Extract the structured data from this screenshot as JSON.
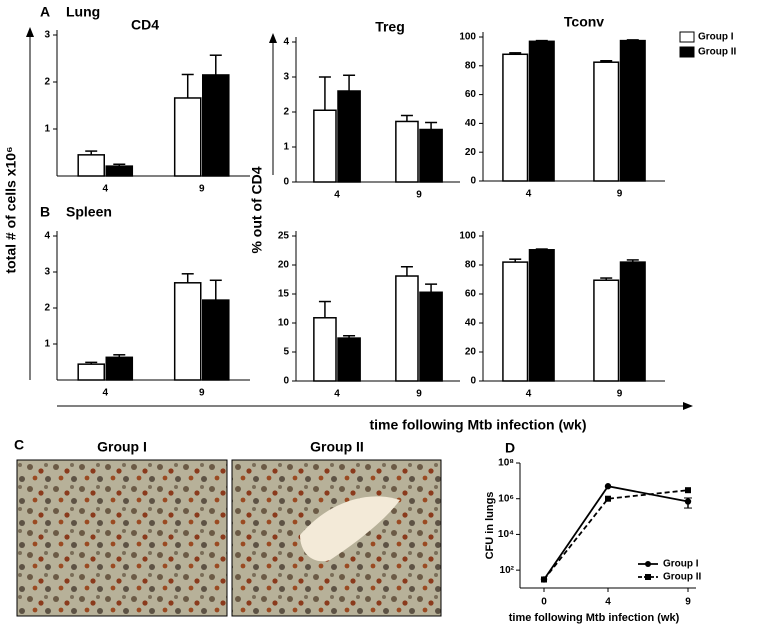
{
  "figure": {
    "panel_a": "A",
    "lung": "Lung",
    "panel_b": "B",
    "spleen": "Spleen",
    "y_label_counts": "total # of cells x10⁶",
    "y_label_percent": "% out of CD4",
    "x_label": "time following Mtb infection (wk)",
    "panel_c": "C",
    "image_group_1": "Group I",
    "image_group_2": "Group II",
    "panel_d": "D"
  },
  "chart_data": [
    {
      "type": "bar",
      "title": "CD4",
      "categories": [
        "4",
        "9"
      ],
      "ylim": [
        0,
        3
      ],
      "yticks": [
        1,
        2,
        3
      ],
      "series": [
        {
          "color": "#ffffff",
          "values": [
            0.45,
            1.66
          ],
          "errors": [
            0.08,
            0.5
          ]
        },
        {
          "color": "#000000",
          "values": [
            0.21,
            2.15
          ],
          "errors": [
            0.04,
            0.42
          ]
        }
      ]
    },
    {
      "type": "bar",
      "title": "Treg",
      "categories": [
        "4",
        "9"
      ],
      "ylim": [
        0,
        4
      ],
      "yticks": [
        0,
        1,
        2,
        3,
        4
      ],
      "series": [
        {
          "color": "#ffffff",
          "values": [
            2.05,
            1.73
          ],
          "errors": [
            0.95,
            0.17
          ]
        },
        {
          "color": "#000000",
          "values": [
            2.6,
            1.5
          ],
          "errors": [
            0.45,
            0.2
          ]
        }
      ]
    },
    {
      "type": "bar",
      "title": "Tconv",
      "categories": [
        "4",
        "9"
      ],
      "ylim": [
        0,
        100
      ],
      "yticks": [
        0,
        20,
        40,
        60,
        80,
        100
      ],
      "legend": "outside-right",
      "series": [
        {
          "name": "Group I",
          "color": "#ffffff",
          "values": [
            88,
            82.5
          ],
          "errors": [
            1,
            1
          ]
        },
        {
          "name": "Group II",
          "color": "#000000",
          "values": [
            97,
            97.5
          ],
          "errors": [
            0.5,
            0.5
          ]
        }
      ]
    },
    {
      "type": "bar",
      "categories": [
        "4",
        "9"
      ],
      "ylim": [
        0,
        4
      ],
      "yticks": [
        1,
        2,
        3,
        4
      ],
      "series": [
        {
          "color": "#ffffff",
          "values": [
            0.44,
            2.7
          ],
          "errors": [
            0.05,
            0.25
          ]
        },
        {
          "color": "#000000",
          "values": [
            0.63,
            2.22
          ],
          "errors": [
            0.07,
            0.55
          ]
        }
      ]
    },
    {
      "type": "bar",
      "categories": [
        "4",
        "9"
      ],
      "ylim": [
        0,
        25
      ],
      "yticks": [
        0,
        5,
        10,
        15,
        20,
        25
      ],
      "series": [
        {
          "color": "#ffffff",
          "values": [
            10.9,
            18.1
          ],
          "errors": [
            2.8,
            1.6
          ]
        },
        {
          "color": "#000000",
          "values": [
            7.4,
            15.3
          ],
          "errors": [
            0.4,
            1.4
          ]
        }
      ]
    },
    {
      "type": "bar",
      "categories": [
        "4",
        "9"
      ],
      "ylim": [
        0,
        100
      ],
      "yticks": [
        0,
        20,
        40,
        60,
        80,
        100
      ],
      "series": [
        {
          "color": "#ffffff",
          "values": [
            82,
            69.5
          ],
          "errors": [
            2,
            1.5
          ]
        },
        {
          "color": "#000000",
          "values": [
            90.5,
            82
          ],
          "errors": [
            0.5,
            1.5
          ]
        }
      ]
    },
    {
      "type": "line",
      "x": [
        0,
        4,
        9
      ],
      "xlim": [
        -1.5,
        9.5
      ],
      "xticks": [
        0,
        4,
        9
      ],
      "log_y": true,
      "ylim": [
        10,
        100000000
      ],
      "yticks": [
        {
          "value": 100,
          "label": "10²"
        },
        {
          "value": 10000,
          "label": "10⁴"
        },
        {
          "value": 1000000,
          "label": "10⁶"
        },
        {
          "value": 100000000,
          "label": "10⁸"
        }
      ],
      "ylabel": "CFU in lungs",
      "xlabel": "time following Mtb infection (wk)",
      "legend": "lower right",
      "series": [
        {
          "name": "Group I",
          "color": "#000000",
          "dash": false,
          "marker": "circle",
          "values": [
            30,
            5000000,
            700000
          ],
          "errors": [
            null,
            null,
            400000
          ]
        },
        {
          "name": "Group II",
          "color": "#000000",
          "dash": true,
          "marker": "square",
          "values": [
            30,
            1000000,
            3000000
          ],
          "errors": [
            null,
            null,
            null
          ]
        }
      ]
    }
  ]
}
